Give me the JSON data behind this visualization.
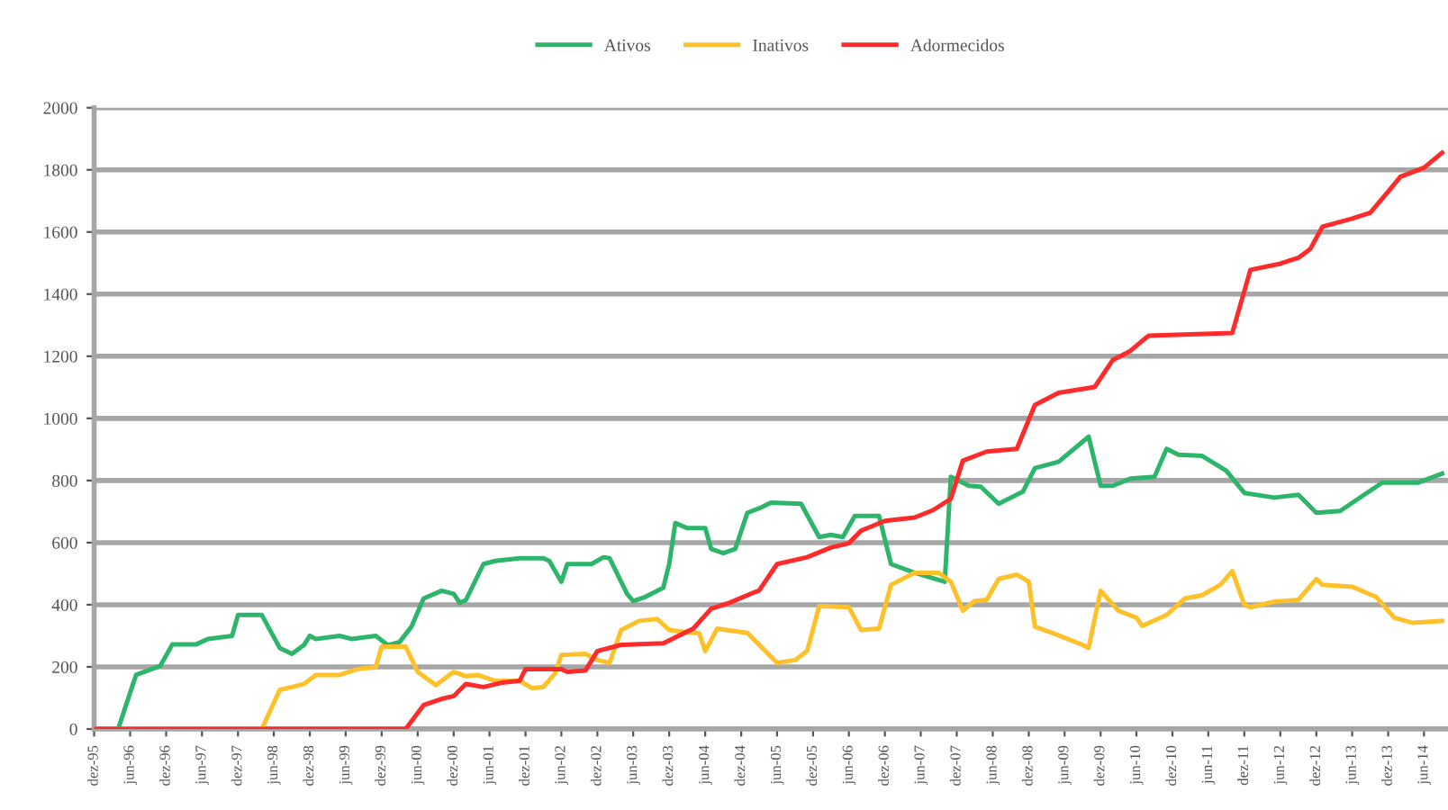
{
  "chart_data": {
    "type": "line",
    "xlim": [
      "1995-12",
      "2014-10"
    ],
    "ylim": [
      0,
      2000
    ],
    "yticks": [
      0,
      200,
      400,
      600,
      800,
      1000,
      1200,
      1400,
      1600,
      1800,
      2000
    ],
    "xticks": [
      {
        "value": "1995-12",
        "label": "dez-95"
      },
      {
        "value": "1996-06",
        "label": "jun-96"
      },
      {
        "value": "1996-12",
        "label": "dez-96"
      },
      {
        "value": "1997-06",
        "label": "jun-97"
      },
      {
        "value": "1997-12",
        "label": "dez-97"
      },
      {
        "value": "1998-06",
        "label": "jun-98"
      },
      {
        "value": "1998-12",
        "label": "dez-98"
      },
      {
        "value": "1999-06",
        "label": "jun-99"
      },
      {
        "value": "1999-12",
        "label": "dez-99"
      },
      {
        "value": "2000-06",
        "label": "jun-00"
      },
      {
        "value": "2000-12",
        "label": "dez-00"
      },
      {
        "value": "2001-06",
        "label": "jun-01"
      },
      {
        "value": "2001-12",
        "label": "dez-01"
      },
      {
        "value": "2002-06",
        "label": "jun-02"
      },
      {
        "value": "2002-12",
        "label": "dez-02"
      },
      {
        "value": "2003-06",
        "label": "jun-03"
      },
      {
        "value": "2003-12",
        "label": "dez-03"
      },
      {
        "value": "2004-06",
        "label": "jun-04"
      },
      {
        "value": "2004-12",
        "label": "dez-04"
      },
      {
        "value": "2005-06",
        "label": "jun-05"
      },
      {
        "value": "2005-12",
        "label": "dez-05"
      },
      {
        "value": "2006-06",
        "label": "jun-06"
      },
      {
        "value": "2006-12",
        "label": "dez-06"
      },
      {
        "value": "2007-06",
        "label": "jun-07"
      },
      {
        "value": "2007-12",
        "label": "dez-07"
      },
      {
        "value": "2008-06",
        "label": "jun-08"
      },
      {
        "value": "2008-12",
        "label": "dez-08"
      },
      {
        "value": "2009-06",
        "label": "jun-09"
      },
      {
        "value": "2009-12",
        "label": "dez-09"
      },
      {
        "value": "2010-06",
        "label": "jun-10"
      },
      {
        "value": "2010-12",
        "label": "dez-10"
      },
      {
        "value": "2011-06",
        "label": "jun-11"
      },
      {
        "value": "2011-12",
        "label": "dez-11"
      },
      {
        "value": "2012-06",
        "label": "jun-12"
      },
      {
        "value": "2012-12",
        "label": "dez-12"
      },
      {
        "value": "2013-06",
        "label": "jun-13"
      },
      {
        "value": "2013-12",
        "label": "dez-13"
      },
      {
        "value": "2014-06",
        "label": "jun-14"
      }
    ],
    "grid": "y",
    "legend": "top",
    "marker": "none",
    "line_style": "solid",
    "series": [
      {
        "name": "Ativos",
        "color": "#2db56b",
        "x": [
          "1995-12",
          "1996-04",
          "1996-07",
          "1996-11",
          "1997-01",
          "1997-05",
          "1997-07",
          "1997-11",
          "1997-12",
          "1998-04",
          "1998-07",
          "1998-09",
          "1998-11",
          "1998-12",
          "1999-01",
          "1999-05",
          "1999-07",
          "1999-11",
          "2000-01",
          "2000-03",
          "2000-05",
          "2000-07",
          "2000-10",
          "2000-12",
          "2001-01",
          "2001-02",
          "2001-05",
          "2001-07",
          "2001-11",
          "2002-03",
          "2002-04",
          "2002-06",
          "2002-07",
          "2002-11",
          "2003-01",
          "2003-02",
          "2003-05",
          "2003-06",
          "2003-08",
          "2003-11",
          "2003-12",
          "2004-01",
          "2004-03",
          "2004-06",
          "2004-07",
          "2004-09",
          "2004-11",
          "2005-01",
          "2005-03",
          "2005-05",
          "2005-10",
          "2006-01",
          "2006-03",
          "2006-05",
          "2006-07",
          "2006-11",
          "2007-01",
          "2007-05",
          "2007-10",
          "2007-11",
          "2008-02",
          "2008-04",
          "2008-07",
          "2008-11",
          "2009-01",
          "2009-05",
          "2009-10",
          "2009-12",
          "2010-02",
          "2010-05",
          "2010-09",
          "2010-11",
          "2011-01",
          "2011-05",
          "2011-09",
          "2011-12",
          "2012-05",
          "2012-09",
          "2012-12",
          "2013-04",
          "2013-08",
          "2013-11",
          "2014-05",
          "2014-09"
        ],
        "values": [
          0,
          0,
          174,
          203,
          272,
          272,
          290,
          300,
          367,
          367,
          261,
          242,
          270,
          300,
          290,
          300,
          290,
          300,
          270,
          280,
          330,
          420,
          445,
          435,
          406,
          415,
          531,
          541,
          550,
          550,
          541,
          474,
          531,
          531,
          553,
          550,
          435,
          412,
          425,
          455,
          531,
          663,
          647,
          647,
          580,
          566,
          580,
          696,
          710,
          729,
          725,
          618,
          625,
          618,
          686,
          686,
          531,
          503,
          474,
          812,
          783,
          780,
          725,
          764,
          840,
          860,
          941,
          783,
          783,
          806,
          812,
          902,
          883,
          879,
          831,
          760,
          745,
          754,
          696,
          702,
          754,
          793,
          793,
          822
        ]
      },
      {
        "name": "Inativos",
        "color": "#ffc12a",
        "x": [
          "1995-12",
          "1998-04",
          "1998-07",
          "1998-09",
          "1998-11",
          "1999-01",
          "1999-05",
          "1999-08",
          "1999-11",
          "1999-12",
          "2000-04",
          "2000-06",
          "2000-09",
          "2000-12",
          "2001-02",
          "2001-04",
          "2001-07",
          "2001-11",
          "2002-01",
          "2002-03",
          "2002-05",
          "2002-06",
          "2002-10",
          "2002-12",
          "2003-02",
          "2003-04",
          "2003-07",
          "2003-10",
          "2003-12",
          "2004-04",
          "2004-05",
          "2004-06",
          "2004-08",
          "2005-01",
          "2005-06",
          "2005-09",
          "2005-11",
          "2006-01",
          "2006-06",
          "2006-08",
          "2006-11",
          "2007-01",
          "2007-05",
          "2007-09",
          "2007-11",
          "2008-01",
          "2008-03",
          "2008-05",
          "2008-07",
          "2008-10",
          "2008-12",
          "2009-01",
          "2009-04",
          "2009-09",
          "2009-10",
          "2009-12",
          "2010-03",
          "2010-06",
          "2010-07",
          "2010-11",
          "2011-02",
          "2011-05",
          "2011-08",
          "2011-10",
          "2011-12",
          "2012-01",
          "2012-05",
          "2012-09",
          "2012-12",
          "2013-01",
          "2013-06",
          "2013-10",
          "2014-01",
          "2014-04",
          "2014-09"
        ],
        "values": [
          0,
          0,
          126,
          135,
          145,
          174,
          174,
          193,
          199,
          265,
          265,
          184,
          141,
          184,
          170,
          174,
          155,
          155,
          132,
          135,
          180,
          238,
          242,
          222,
          213,
          319,
          348,
          354,
          319,
          309,
          309,
          251,
          323,
          309,
          213,
          222,
          251,
          396,
          392,
          319,
          323,
          464,
          503,
          503,
          474,
          381,
          412,
          416,
          483,
          497,
          474,
          329,
          309,
          271,
          261,
          445,
          381,
          358,
          332,
          367,
          420,
          431,
          464,
          508,
          400,
          392,
          410,
          416,
          483,
          464,
          458,
          425,
          358,
          342,
          348
        ]
      },
      {
        "name": "Adormecidos",
        "color": "#ff2a2a",
        "x": [
          "1995-12",
          "2000-04",
          "2000-07",
          "2000-10",
          "2000-12",
          "2001-02",
          "2001-05",
          "2001-08",
          "2001-11",
          "2001-12",
          "2002-06",
          "2002-07",
          "2002-10",
          "2002-12",
          "2003-04",
          "2003-11",
          "2004-04",
          "2004-07",
          "2004-10",
          "2005-02",
          "2005-03",
          "2005-06",
          "2005-11",
          "2006-03",
          "2006-06",
          "2006-08",
          "2006-12",
          "2007-05",
          "2007-08",
          "2007-11",
          "2008-01",
          "2008-05",
          "2008-10",
          "2009-01",
          "2009-05",
          "2009-11",
          "2010-02",
          "2010-05",
          "2010-08",
          "2011-10",
          "2012-01",
          "2012-06",
          "2012-09",
          "2012-11",
          "2013-01",
          "2013-06",
          "2013-09",
          "2013-12",
          "2014-02",
          "2014-06",
          "2014-09"
        ],
        "values": [
          0,
          0,
          77,
          97,
          106,
          145,
          135,
          149,
          155,
          193,
          193,
          184,
          188,
          251,
          271,
          276,
          323,
          387,
          406,
          439,
          445,
          531,
          553,
          584,
          598,
          638,
          670,
          681,
          704,
          741,
          864,
          893,
          902,
          1043,
          1082,
          1101,
          1188,
          1217,
          1266,
          1275,
          1478,
          1498,
          1517,
          1546,
          1617,
          1643,
          1662,
          1730,
          1778,
          1807,
          1855
        ]
      }
    ]
  }
}
